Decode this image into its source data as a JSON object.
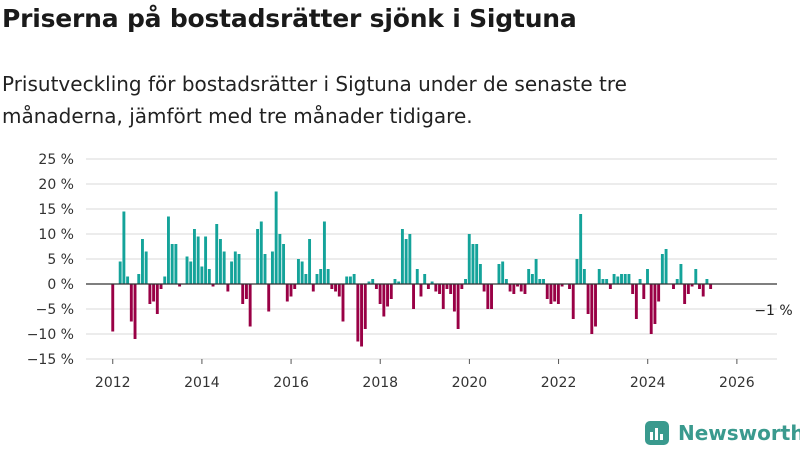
{
  "header": {
    "title": "Priserna på bostadsrätter sjönk i Sigtuna",
    "subtitle": "Prisutveckling för bostadsrätter i Sigtuna under de senaste tre månaderna, jämfört med tre månader tidigare."
  },
  "brand": {
    "name": "Newsworthy"
  },
  "colors": {
    "positive": "#14a39a",
    "negative": "#990045",
    "grid": "#d9d9d9",
    "zero": "#333333"
  },
  "chart_data": {
    "type": "bar",
    "title": "Priserna på bostadsrätter sjönk i Sigtuna",
    "xlabel": "",
    "ylabel": "",
    "unit": "%",
    "ylim": [
      -15,
      25
    ],
    "xlim": [
      2011.4,
      2026.9
    ],
    "y_ticks": [
      -15,
      -10,
      -5,
      0,
      5,
      10,
      15,
      20,
      25
    ],
    "y_tick_labels": [
      "−15 %",
      "−10 %",
      "−5 %",
      "0 %",
      "5 %",
      "10 %",
      "15 %",
      "20 %",
      "25 %"
    ],
    "x_ticks": [
      2012,
      2014,
      2016,
      2018,
      2020,
      2022,
      2024,
      2026
    ],
    "x_tick_labels": [
      "2012",
      "2014",
      "2016",
      "2018",
      "2020",
      "2022",
      "2024",
      "2026"
    ],
    "start": 2012.0,
    "step": 0.0833,
    "values": [
      -9.5,
      null,
      4.5,
      14.5,
      1.5,
      -7.5,
      -11,
      2,
      9,
      6.5,
      -4,
      -3.5,
      -6,
      -1,
      1.5,
      13.5,
      8,
      8,
      -0.5,
      null,
      5.5,
      4.5,
      11,
      9.5,
      3.5,
      9.5,
      3,
      -0.5,
      12,
      9,
      6.5,
      -1.5,
      4.5,
      6.5,
      6,
      -4,
      -3,
      -8.5,
      null,
      11,
      12.5,
      6,
      -5.5,
      6.5,
      18.5,
      10,
      8,
      -3.5,
      -2.5,
      -1,
      5,
      4.5,
      2,
      9,
      -1.5,
      2,
      3,
      12.5,
      3,
      -1,
      -1.5,
      -2.5,
      -7.5,
      1.5,
      1.5,
      2,
      -11.5,
      -12.5,
      -9,
      0.5,
      1,
      -1,
      -4,
      -6.5,
      -4.5,
      -3,
      1,
      0.5,
      11,
      9,
      10,
      -5,
      3,
      -2.5,
      2,
      -1,
      0.5,
      -1.5,
      -2,
      -5,
      -1,
      -2,
      -5.5,
      -9,
      -1,
      1,
      10,
      8,
      8,
      4,
      -1.5,
      -5,
      -5,
      null,
      4,
      4.5,
      1,
      -1.5,
      -2,
      -0.5,
      -1.5,
      -2,
      3,
      2,
      5,
      1,
      1,
      -3,
      -4,
      -3.5,
      -4,
      -0.5,
      0,
      -1,
      -7,
      5,
      14,
      3,
      -6,
      -10,
      -8.5,
      3,
      1,
      1,
      -1,
      2,
      1.5,
      2,
      2,
      2,
      -2,
      -7,
      1,
      -3,
      3,
      -10,
      -8,
      -3.5,
      6,
      7,
      null,
      -1,
      1,
      4,
      -4,
      -2,
      -0.5,
      3,
      -1,
      -2.5,
      1,
      -1
    ],
    "annotation": {
      "x": 2026.75,
      "y": -1,
      "label": "−1 %"
    }
  }
}
